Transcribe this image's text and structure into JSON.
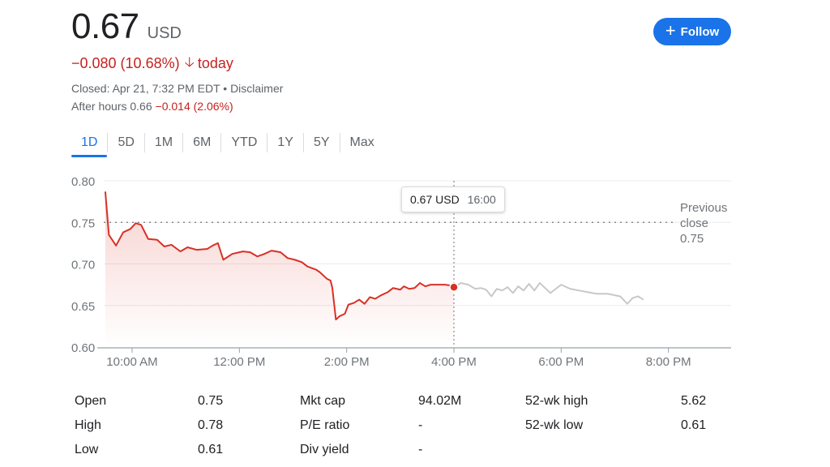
{
  "header": {
    "price": "0.67",
    "currency": "USD",
    "change": "−0.080 (10.68%)",
    "change_arrow": "down-arrow-icon",
    "change_suffix": "today",
    "closed": "Closed: Apr 21, 7:32 PM EDT • Disclaimer",
    "after_hours_prefix": "After hours 0.66",
    "after_hours_change": "−0.014 (2.06%)",
    "follow_label": "Follow"
  },
  "tabs": [
    {
      "label": "1D",
      "active": true
    },
    {
      "label": "5D"
    },
    {
      "label": "1M"
    },
    {
      "label": "6M"
    },
    {
      "label": "YTD"
    },
    {
      "label": "1Y"
    },
    {
      "label": "5Y"
    },
    {
      "label": "Max"
    }
  ],
  "tooltip": {
    "price": "0.67 USD",
    "time": "16:00"
  },
  "previous_close": {
    "line1": "Previous",
    "line2": "close",
    "value": "0.75"
  },
  "colors": {
    "down": "#c5221f",
    "line_red": "#d93025",
    "after_hours_line": "#c8c8c8",
    "accent": "#1a73e8"
  },
  "chart_data": {
    "type": "line",
    "x_tick_labels": [
      "10:00 AM",
      "12:00 PM",
      "2:00 PM",
      "4:00 PM",
      "6:00 PM",
      "8:00 PM"
    ],
    "y_tick_labels": [
      "0.80",
      "0.75",
      "0.70",
      "0.65",
      "0.60"
    ],
    "ylim": [
      0.6,
      0.8
    ],
    "previous_close": 0.75,
    "grid": true,
    "series": [
      {
        "session": "regular",
        "x": [
          "9:30",
          "9:34",
          "9:42",
          "9:50",
          "9:58",
          "10:04",
          "10:10",
          "10:18",
          "10:28",
          "10:36",
          "10:44",
          "10:54",
          "11:02",
          "11:12",
          "11:24",
          "11:30",
          "11:36",
          "11:42",
          "11:52",
          "12:04",
          "12:12",
          "12:20",
          "12:28",
          "12:36",
          "12:46",
          "12:54",
          "13:02",
          "13:10",
          "13:16",
          "13:26",
          "13:30",
          "13:38",
          "13:42",
          "13:44",
          "13:48",
          "13:52",
          "13:58",
          "14:02",
          "14:08",
          "14:14",
          "14:20",
          "14:26",
          "14:32",
          "14:38",
          "14:46",
          "14:52",
          "15:00",
          "15:04",
          "15:10",
          "15:16",
          "15:22",
          "15:28",
          "15:34",
          "15:42",
          "15:50",
          "15:56",
          "16:00"
        ],
        "values": [
          0.787,
          0.735,
          0.722,
          0.738,
          0.742,
          0.749,
          0.747,
          0.73,
          0.729,
          0.721,
          0.723,
          0.715,
          0.72,
          0.717,
          0.718,
          0.722,
          0.725,
          0.705,
          0.712,
          0.715,
          0.714,
          0.709,
          0.712,
          0.716,
          0.714,
          0.707,
          0.705,
          0.702,
          0.697,
          0.693,
          0.69,
          0.682,
          0.68,
          0.671,
          0.633,
          0.637,
          0.64,
          0.651,
          0.653,
          0.657,
          0.652,
          0.66,
          0.658,
          0.662,
          0.666,
          0.671,
          0.669,
          0.673,
          0.67,
          0.671,
          0.677,
          0.673,
          0.675,
          0.675,
          0.675,
          0.674,
          0.672
        ]
      },
      {
        "session": "after_hours",
        "x": [
          "16:00",
          "16:08",
          "16:16",
          "16:24",
          "16:30",
          "16:36",
          "16:42",
          "16:48",
          "16:54",
          "17:00",
          "17:06",
          "17:12",
          "17:18",
          "17:24",
          "17:30",
          "17:36",
          "17:48",
          "18:00",
          "18:10",
          "18:20",
          "18:30",
          "18:40",
          "18:52",
          "19:06",
          "19:14",
          "19:20",
          "19:26",
          "19:32"
        ],
        "values": [
          0.672,
          0.677,
          0.675,
          0.67,
          0.671,
          0.669,
          0.661,
          0.67,
          0.668,
          0.672,
          0.665,
          0.673,
          0.668,
          0.676,
          0.668,
          0.677,
          0.665,
          0.675,
          0.67,
          0.668,
          0.666,
          0.664,
          0.664,
          0.661,
          0.652,
          0.659,
          0.661,
          0.657
        ]
      }
    ],
    "marker": {
      "x": "16:00",
      "y": 0.672
    }
  },
  "stats": [
    {
      "label": "Open",
      "value": "0.75"
    },
    {
      "label": "High",
      "value": "0.78"
    },
    {
      "label": "Low",
      "value": "0.61"
    },
    {
      "label": "Mkt cap",
      "value": "94.02M"
    },
    {
      "label": "P/E ratio",
      "value": "-"
    },
    {
      "label": "Div yield",
      "value": "-"
    },
    {
      "label": "52-wk high",
      "value": "5.62"
    },
    {
      "label": "52-wk low",
      "value": "0.61"
    }
  ]
}
